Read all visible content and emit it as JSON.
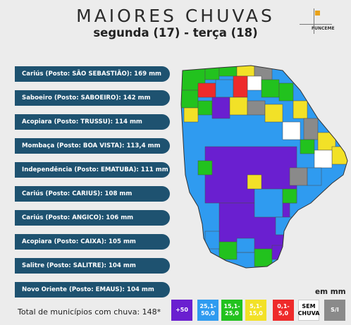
{
  "header": {
    "title": "MAIORES CHUVAS",
    "subtitle": "segunda (17) - terça (18)",
    "logo_text": "FUNCEME"
  },
  "records": [
    "Cariús (Posto: SÃO SEBASTIÃO): 169 mm",
    "Saboeiro (Posto: SABOEIRO): 142 mm",
    "Acopiara (Posto: TRUSSU): 114 mm",
    "Mombaça (Posto: BOA VISTA): 113,4 mm",
    "Independência (Posto: EMATUBA): 111 mm",
    "Cariús (Posto: CARIUS): 108 mm",
    "Cariús (Posto: ANGICO): 106 mm",
    "Acopiara (Posto: CAIXA): 105 mm",
    "Salitre (Posto: SALITRE): 104 mm",
    "Novo Oriente (Posto: EMAUS): 104 mm"
  ],
  "legend": {
    "unit": "em mm",
    "total_text": "Total de municípios com chuva: 148*",
    "items": [
      {
        "label": "+50",
        "color": "#6a1fd0",
        "text_color": "#ffffff"
      },
      {
        "label": "25,1-50,0",
        "color": "#2f9bf0",
        "text_color": "#ffffff"
      },
      {
        "label": "15,1-25,0",
        "color": "#22c21e",
        "text_color": "#ffffff"
      },
      {
        "label": "5,1-15,0",
        "color": "#f2e127",
        "text_color": "#ffffff"
      },
      {
        "label": "0,1-5,0",
        "color": "#ee2b2b",
        "text_color": "#ffffff"
      },
      {
        "label": "SEM CHUVA",
        "color": "#ffffff",
        "text_color": "#000000"
      },
      {
        "label": "S/I",
        "color": "#8a8a8a",
        "text_color": "#ffffff"
      }
    ]
  }
}
